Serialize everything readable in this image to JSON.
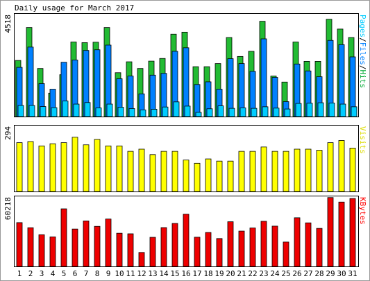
{
  "chart_data": [
    {
      "type": "bar",
      "title": "Daily usage for March 2017",
      "ymax_label": "4518",
      "categories": [
        "1",
        "2",
        "3",
        "4",
        "5",
        "6",
        "7",
        "8",
        "9",
        "10",
        "11",
        "12",
        "13",
        "14",
        "15",
        "16",
        "17",
        "18",
        "19",
        "20",
        "21",
        "22",
        "23",
        "24",
        "25",
        "26",
        "27",
        "28",
        "29",
        "30",
        "31"
      ],
      "weekend_days": [
        "4",
        "5",
        "11",
        "12",
        "18",
        "19",
        "25",
        "26"
      ],
      "ylim": [
        0,
        4518
      ],
      "legend_parts": [
        {
          "text": "Pages",
          "color": "#00ccff"
        },
        {
          "text": "/",
          "color": "#000000"
        },
        {
          "text": "Files",
          "color": "#0080ff"
        },
        {
          "text": "/",
          "color": "#000000"
        },
        {
          "text": "Hits",
          "color": "#00aa33"
        }
      ],
      "series": [
        {
          "name": "Hits",
          "color": "#22bb33",
          "values": [
            2520,
            4000,
            2160,
            1050,
            1880,
            3350,
            3320,
            3340,
            4000,
            1970,
            2460,
            2160,
            2490,
            2610,
            3700,
            3790,
            2240,
            2240,
            2380,
            3550,
            2700,
            2930,
            4280,
            1820,
            1550,
            3350,
            2480,
            2480,
            4370,
            3930,
            3550
          ]
        },
        {
          "name": "Files",
          "color": "#0080ff",
          "values": [
            2210,
            3120,
            1480,
            1230,
            2440,
            2540,
            2970,
            3000,
            3210,
            1700,
            1820,
            1020,
            1860,
            1940,
            2930,
            3090,
            1440,
            1560,
            1230,
            2600,
            2380,
            2030,
            3490,
            1760,
            670,
            2360,
            2050,
            1790,
            3420,
            3230,
            2680
          ]
        },
        {
          "name": "Pages",
          "color": "#00ccff",
          "values": [
            500,
            500,
            450,
            400,
            700,
            560,
            630,
            390,
            560,
            420,
            360,
            300,
            330,
            430,
            660,
            470,
            190,
            350,
            480,
            370,
            390,
            370,
            440,
            380,
            340,
            590,
            600,
            620,
            610,
            560,
            440
          ]
        }
      ]
    },
    {
      "type": "bar",
      "ymax_label": "294",
      "legend": {
        "text": "Visits",
        "color": "#dddd00"
      },
      "ylim": [
        0,
        294
      ],
      "series": [
        {
          "name": "Visits",
          "color": "#ffff00",
          "values": [
            225,
            230,
            210,
            220,
            225,
            250,
            215,
            240,
            210,
            210,
            185,
            195,
            170,
            185,
            185,
            145,
            130,
            150,
            140,
            140,
            185,
            185,
            205,
            185,
            185,
            195,
            195,
            190,
            225,
            235,
            200
          ]
        }
      ]
    },
    {
      "type": "bar",
      "ymax_label": "60218",
      "legend": {
        "text": "KBytes",
        "color": "#ff0000"
      },
      "ylim": [
        0,
        60218
      ],
      "series": [
        {
          "name": "KBytes",
          "color": "#ee0000",
          "values": [
            38800,
            34300,
            28100,
            26200,
            51000,
            33100,
            40300,
            35500,
            42000,
            29400,
            28900,
            12400,
            25800,
            34400,
            38100,
            46300,
            25900,
            30100,
            24700,
            39600,
            31300,
            34100,
            40000,
            35700,
            21600,
            43100,
            38600,
            33700,
            61000,
            57000,
            60200
          ]
        }
      ]
    }
  ]
}
